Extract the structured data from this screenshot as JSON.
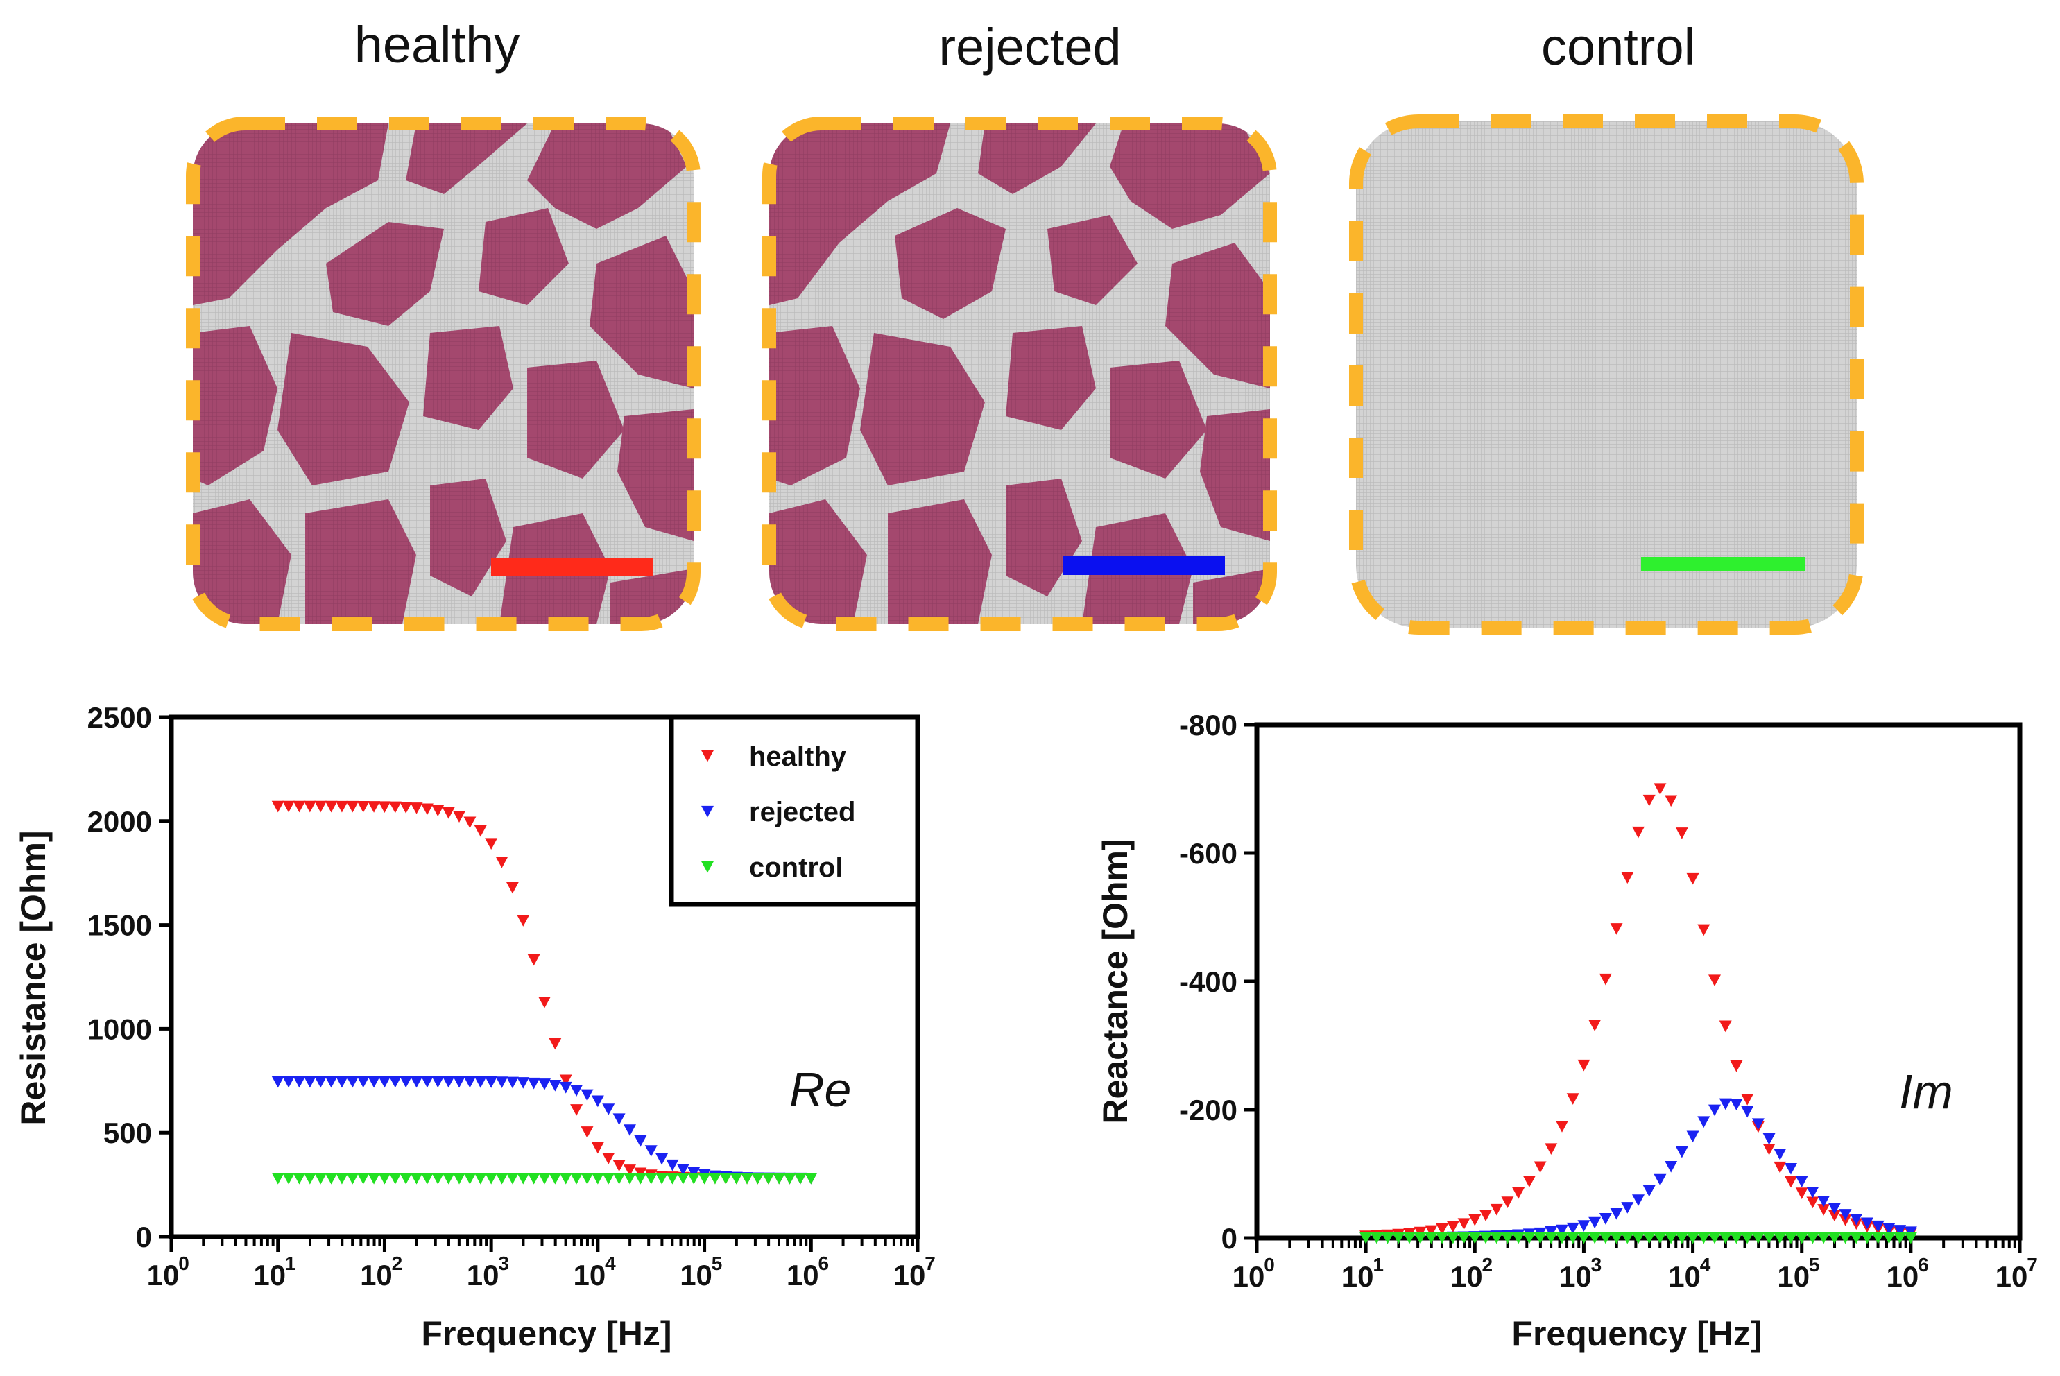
{
  "panels": [
    {
      "title": "healthy",
      "pattern": "tissue",
      "bar_color": "#ff2a1a"
    },
    {
      "title": "rejected",
      "pattern": "tissue-rejected",
      "bar_color": "#0a10f0"
    },
    {
      "title": "control",
      "pattern": "control",
      "bar_color": "#2ef02e"
    }
  ],
  "colors": {
    "tissue": "#a4486e",
    "background": "#cfcfcf",
    "dashed_border": "#fbb52b",
    "healthy": "#f21a1a",
    "rejected": "#1a22f2",
    "control": "#22e022"
  },
  "chart_data": [
    {
      "type": "scatter",
      "marker": "triangle-down",
      "xscale": "log",
      "xlabel": "Frequency [Hz]",
      "ylabel": "Resistance [Ohm]",
      "xlim": [
        1,
        10000000
      ],
      "ylim": [
        0,
        2500
      ],
      "xticks": [
        "10^0",
        "10^1",
        "10^2",
        "10^3",
        "10^4",
        "10^5",
        "10^6",
        "10^7"
      ],
      "yticks": [
        "0",
        "500",
        "1000",
        "1500",
        "2000",
        "2500"
      ],
      "annotation": "Re",
      "legend": {
        "position": "top-right",
        "entries": [
          "healthy",
          "rejected",
          "control"
        ]
      },
      "series": [
        {
          "name": "healthy",
          "fc": 3000,
          "r_low": 2070,
          "r_high": 280,
          "x_range": [
            10,
            1000000
          ],
          "points_per_decade": 10
        },
        {
          "name": "rejected",
          "fc": 20000,
          "r_low": 745,
          "r_high": 280,
          "x_range": [
            10,
            1000000
          ],
          "points_per_decade": 10
        },
        {
          "name": "control",
          "fc": 20000,
          "r_low": 280,
          "r_high": 280,
          "x_range": [
            10,
            1000000
          ],
          "points_per_decade": 10
        }
      ]
    },
    {
      "type": "scatter",
      "marker": "triangle-down",
      "xscale": "log",
      "xlabel": "Frequency [Hz]",
      "ylabel": "Reactance [Ohm]",
      "xlim": [
        1,
        10000000
      ],
      "ylim": [
        0,
        -800
      ],
      "xticks": [
        "10^0",
        "10^1",
        "10^2",
        "10^3",
        "10^4",
        "10^5",
        "10^6",
        "10^7"
      ],
      "yticks": [
        "0",
        "-200",
        "-400",
        "-600",
        "-800"
      ],
      "annotation": "Im",
      "series": [
        {
          "name": "healthy",
          "fc": 5000,
          "peak": -700,
          "x_range": [
            10,
            1000000
          ],
          "points_per_decade": 10
        },
        {
          "name": "rejected",
          "fc": 22000,
          "peak": -210,
          "x_range": [
            10,
            1000000
          ],
          "points_per_decade": 10
        },
        {
          "name": "control",
          "fc": 20000,
          "peak": 0,
          "x_range": [
            10,
            1000000
          ],
          "points_per_decade": 10
        }
      ]
    }
  ]
}
